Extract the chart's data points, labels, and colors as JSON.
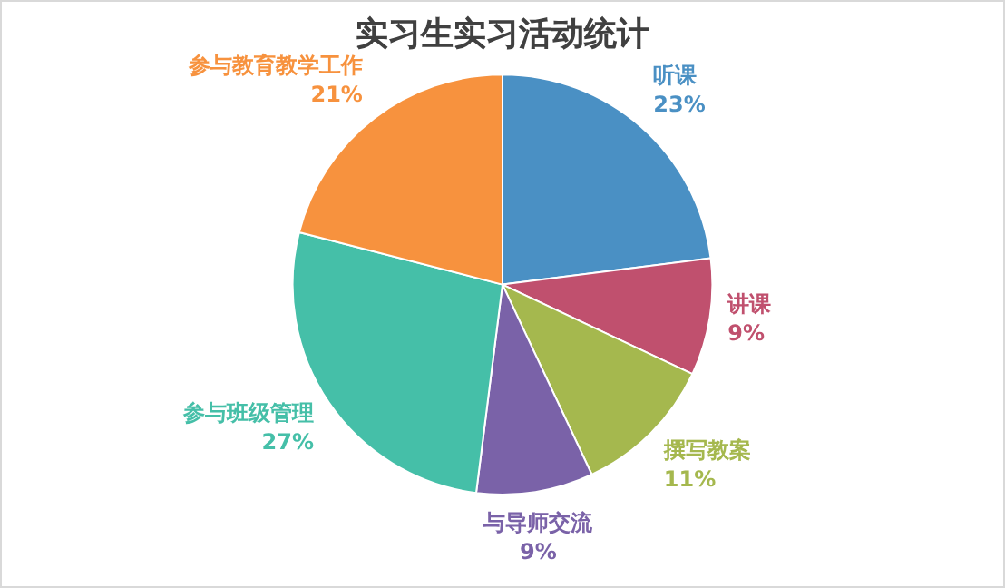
{
  "chart_data": {
    "type": "pie",
    "title": "实习生实习活动统计",
    "categories": [
      "听课",
      "讲课",
      "撰写教案",
      "与导师交流",
      "参与班级管理",
      "参与教育教学工作"
    ],
    "values": [
      23,
      9,
      11,
      9,
      27,
      21
    ],
    "value_labels": [
      "23%",
      "9%",
      "11%",
      "9%",
      "27%",
      "21%"
    ],
    "colors": [
      "#4a90c4",
      "#c0506e",
      "#a5b84e",
      "#7a62a8",
      "#45bfa8",
      "#f7923e"
    ],
    "legend": false
  }
}
